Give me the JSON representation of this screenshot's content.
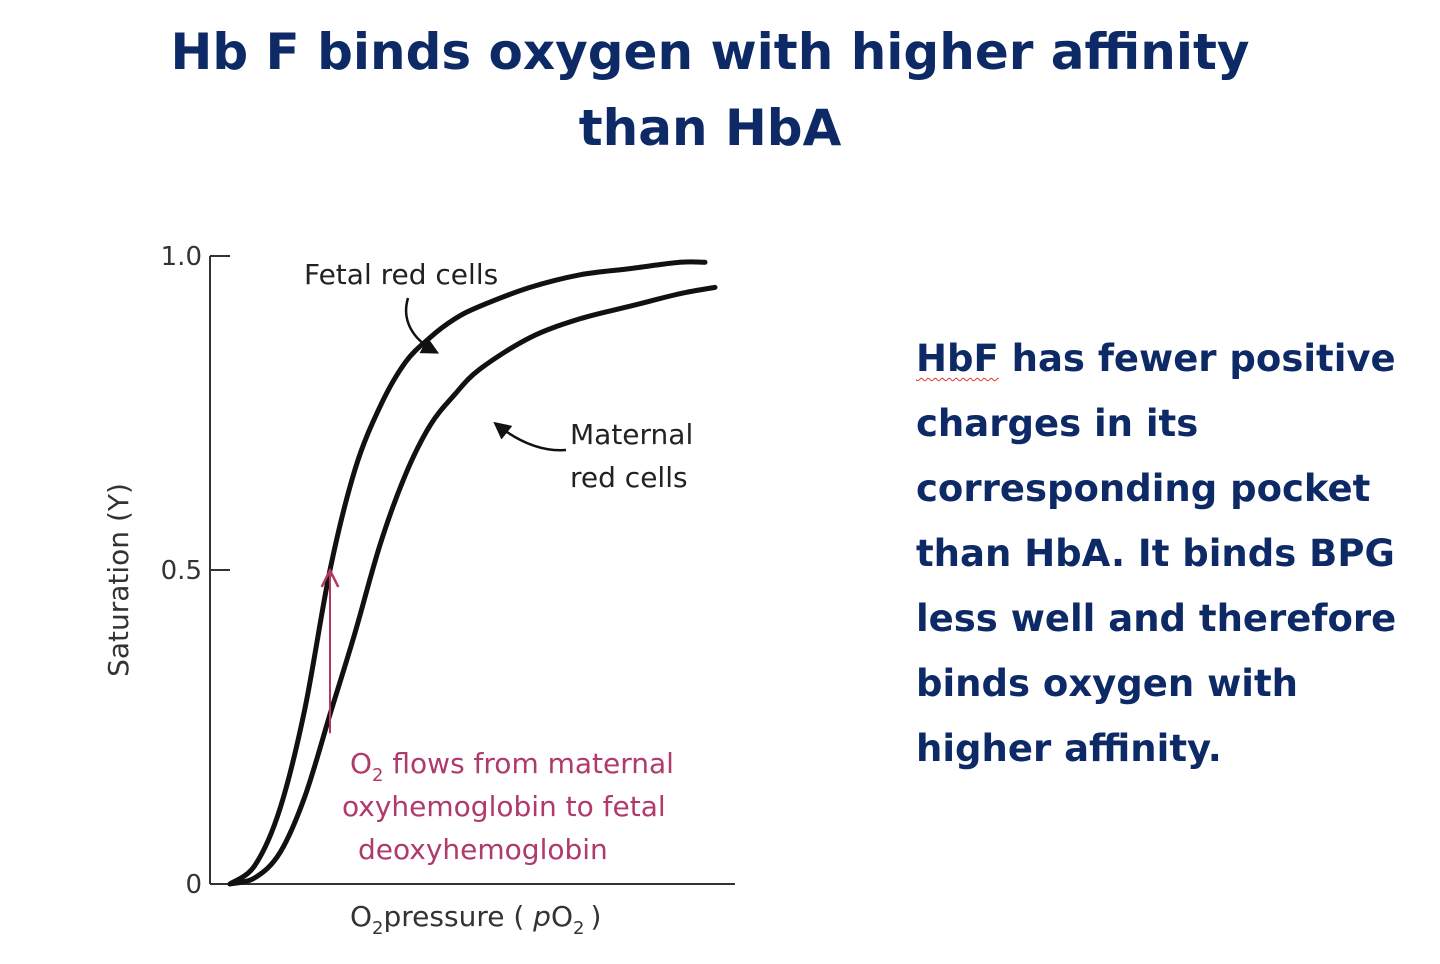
{
  "slide": {
    "title_line1": "Hb F binds oxygen with higher affinity",
    "title_line2": "than HbA",
    "body_first_word": "HbF",
    "body_rest_line1": " has fewer positive",
    "body_lines": [
      "charges in its",
      "corresponding pocket",
      "than HbA. It binds BPG",
      "less well and therefore",
      "binds oxygen with",
      "higher affinity."
    ]
  },
  "chart_data": {
    "type": "line",
    "ylabel": "Saturation  (Y)",
    "xlabel_prefix": "O",
    "xlabel_sub": "2",
    "xlabel_main": "pressure ( ",
    "xlabel_var": "p",
    "xlabel_var2": "O",
    "xlabel_sub2": "2",
    "xlabel_close": ")",
    "y_ticks": [
      {
        "value": 1.0,
        "label": "1.0"
      },
      {
        "value": 0.5,
        "label": "0.5"
      },
      {
        "value": 0.0,
        "label": "0"
      }
    ],
    "ylim": [
      0,
      1
    ],
    "xlim": [
      0,
      100
    ],
    "series": [
      {
        "name": "Fetal red cells",
        "x": [
          0,
          5,
          10,
          15,
          20,
          25,
          30,
          35,
          40,
          45,
          50,
          60,
          70,
          80,
          90,
          95
        ],
        "y": [
          0,
          0.03,
          0.12,
          0.28,
          0.5,
          0.66,
          0.76,
          0.83,
          0.87,
          0.9,
          0.92,
          0.95,
          0.97,
          0.98,
          0.99,
          0.99
        ]
      },
      {
        "name": "Maternal red cells",
        "x": [
          0,
          5,
          10,
          15,
          20,
          25,
          30,
          35,
          40,
          45,
          50,
          60,
          70,
          80,
          90,
          97
        ],
        "y": [
          0,
          0.01,
          0.05,
          0.14,
          0.27,
          0.4,
          0.54,
          0.65,
          0.73,
          0.78,
          0.82,
          0.87,
          0.9,
          0.92,
          0.94,
          0.95
        ]
      }
    ],
    "annotations": {
      "fetal_label": "Fetal red cells",
      "maternal_label_line1": "Maternal",
      "maternal_label_line2": "red cells",
      "flow_line1_prefix": "O",
      "flow_line1_sub": "2",
      "flow_line1_rest": " flows from maternal",
      "flow_line2": "oxyhemoglobin to fetal",
      "flow_line3": "deoxyhemoglobin",
      "arrow_x": 20,
      "arrow_y_from": 0.24,
      "arrow_y_to": 0.5,
      "arrow_color": "#b03a5a"
    },
    "colors": {
      "curve": "#111111",
      "axis": "#333333",
      "annotation_text": "#b03a6a",
      "label_text": "#222222"
    },
    "grid": false
  }
}
